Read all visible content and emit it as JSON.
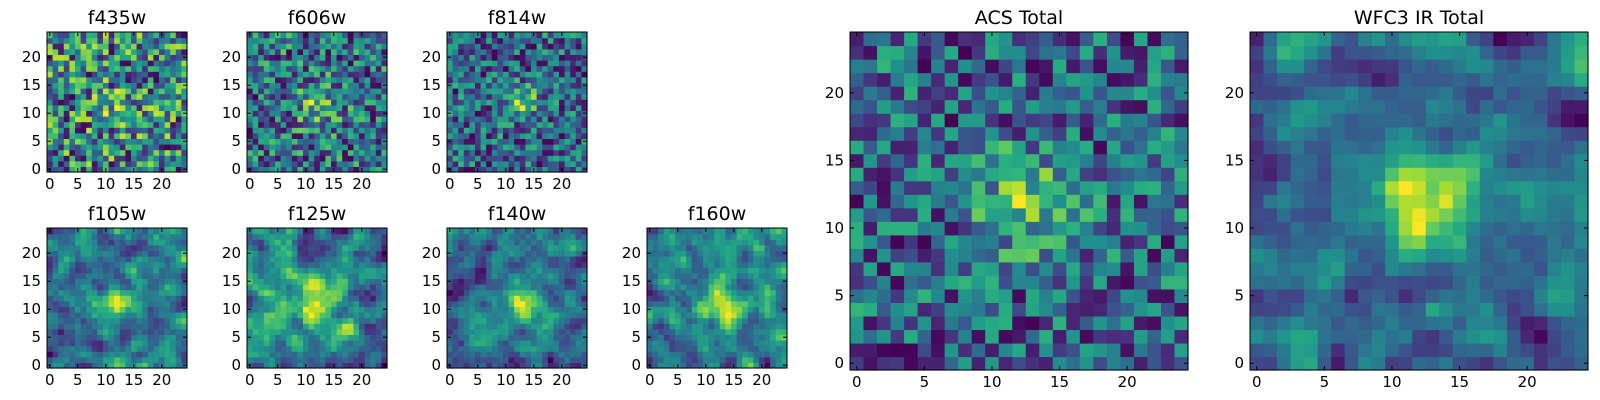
{
  "chart_data": [
    {
      "type": "heatmap",
      "title": "f435w",
      "grid_size": 25,
      "colormap": "viridis",
      "seed": 11,
      "peak_center": [
        12.5,
        11
      ],
      "peak_width": 3,
      "peak_strength": 0.15,
      "noise_level": 0.55,
      "smooth_passes": 0,
      "xlim": [
        0,
        24
      ],
      "ylim": [
        0,
        24
      ],
      "xticks": [
        0,
        5,
        10,
        15,
        20
      ],
      "yticks": [
        0,
        5,
        10,
        15,
        20
      ],
      "xtick_labels": [
        "0",
        "5",
        "10",
        "15",
        "20"
      ],
      "ytick_labels": [
        "0",
        "5",
        "10",
        "15",
        "20"
      ]
    },
    {
      "type": "heatmap",
      "title": "f606w",
      "grid_size": 25,
      "colormap": "viridis",
      "seed": 23,
      "peak_center": [
        12,
        11.5
      ],
      "peak_width": 2.5,
      "peak_strength": 0.35,
      "noise_level": 0.5,
      "smooth_passes": 0,
      "xlim": [
        0,
        24
      ],
      "ylim": [
        0,
        24
      ],
      "xticks": [
        0,
        5,
        10,
        15,
        20
      ],
      "yticks": [
        0,
        5,
        10,
        15,
        20
      ],
      "xtick_labels": [
        "0",
        "5",
        "10",
        "15",
        "20"
      ],
      "ytick_labels": [
        "0",
        "5",
        "10",
        "15",
        "20"
      ]
    },
    {
      "type": "heatmap",
      "title": "f814w",
      "grid_size": 25,
      "colormap": "viridis",
      "seed": 37,
      "peak_center": [
        13,
        12
      ],
      "peak_width": 2,
      "peak_strength": 0.5,
      "noise_level": 0.5,
      "smooth_passes": 0,
      "xlim": [
        0,
        24
      ],
      "ylim": [
        0,
        24
      ],
      "xticks": [
        0,
        5,
        10,
        15,
        20
      ],
      "yticks": [
        0,
        5,
        10,
        15,
        20
      ],
      "xtick_labels": [
        "0",
        "5",
        "10",
        "15",
        "20"
      ],
      "ytick_labels": [
        "0",
        "5",
        "10",
        "15",
        "20"
      ]
    },
    {
      "type": "heatmap",
      "title": "f105w",
      "grid_size": 25,
      "colormap": "viridis",
      "seed": 41,
      "peak_center": [
        12.5,
        11
      ],
      "peak_width": 2.5,
      "peak_strength": 0.5,
      "noise_level": 0.55,
      "smooth_passes": 1,
      "xlim": [
        0,
        24
      ],
      "ylim": [
        0,
        24
      ],
      "xticks": [
        0,
        5,
        10,
        15,
        20
      ],
      "yticks": [
        0,
        5,
        10,
        15,
        20
      ],
      "xtick_labels": [
        "0",
        "5",
        "10",
        "15",
        "20"
      ],
      "ytick_labels": [
        "0",
        "5",
        "10",
        "15",
        "20"
      ]
    },
    {
      "type": "heatmap",
      "title": "f125w",
      "grid_size": 25,
      "colormap": "viridis",
      "seed": 53,
      "peak_center": [
        12,
        11
      ],
      "peak_width": 3,
      "peak_strength": 0.45,
      "noise_level": 0.55,
      "smooth_passes": 1,
      "xlim": [
        0,
        24
      ],
      "ylim": [
        0,
        24
      ],
      "xticks": [
        0,
        5,
        10,
        15,
        20
      ],
      "yticks": [
        0,
        5,
        10,
        15,
        20
      ],
      "xtick_labels": [
        "0",
        "5",
        "10",
        "15",
        "20"
      ],
      "ytick_labels": [
        "0",
        "5",
        "10",
        "15",
        "20"
      ]
    },
    {
      "type": "heatmap",
      "title": "f140w",
      "grid_size": 25,
      "colormap": "viridis",
      "seed": 67,
      "peak_center": [
        13,
        11
      ],
      "peak_width": 3,
      "peak_strength": 0.5,
      "noise_level": 0.55,
      "smooth_passes": 1,
      "xlim": [
        0,
        24
      ],
      "ylim": [
        0,
        24
      ],
      "xticks": [
        0,
        5,
        10,
        15,
        20
      ],
      "yticks": [
        0,
        5,
        10,
        15,
        20
      ],
      "xtick_labels": [
        "0",
        "5",
        "10",
        "15",
        "20"
      ],
      "ytick_labels": [
        "0",
        "5",
        "10",
        "15",
        "20"
      ]
    },
    {
      "type": "heatmap",
      "title": "f160w",
      "grid_size": 25,
      "colormap": "viridis",
      "seed": 79,
      "peak_center": [
        13,
        11
      ],
      "peak_width": 3,
      "peak_strength": 0.5,
      "noise_level": 0.55,
      "smooth_passes": 1,
      "xlim": [
        0,
        24
      ],
      "ylim": [
        0,
        24
      ],
      "xticks": [
        0,
        5,
        10,
        15,
        20
      ],
      "yticks": [
        0,
        5,
        10,
        15,
        20
      ],
      "xtick_labels": [
        "0",
        "5",
        "10",
        "15",
        "20"
      ],
      "ytick_labels": [
        "0",
        "5",
        "10",
        "15",
        "20"
      ]
    },
    {
      "type": "heatmap",
      "title": "ACS Total",
      "grid_size": 25,
      "colormap": "viridis",
      "seed": 97,
      "peak_center": [
        12.5,
        12
      ],
      "peak_width": 2.5,
      "peak_strength": 0.5,
      "noise_level": 0.5,
      "smooth_passes": 0,
      "xlim": [
        0,
        24
      ],
      "ylim": [
        0,
        24
      ],
      "xticks": [
        0,
        5,
        10,
        15,
        20
      ],
      "yticks": [
        0,
        5,
        10,
        15,
        20
      ],
      "xtick_labels": [
        "0",
        "5",
        "10",
        "15",
        "20"
      ],
      "ytick_labels": [
        "0",
        "5",
        "10",
        "15",
        "20"
      ]
    },
    {
      "type": "heatmap",
      "title": "WFC3 IR Total",
      "grid_size": 25,
      "colormap": "viridis",
      "seed": 113,
      "peak_center": [
        12.5,
        12
      ],
      "peak_width": 2.5,
      "peak_strength": 0.6,
      "noise_level": 0.45,
      "smooth_passes": 1,
      "xlim": [
        0,
        24
      ],
      "ylim": [
        0,
        24
      ],
      "xticks": [
        0,
        5,
        10,
        15,
        20
      ],
      "yticks": [
        0,
        5,
        10,
        15,
        20
      ],
      "xtick_labels": [
        "0",
        "5",
        "10",
        "15",
        "20"
      ],
      "ytick_labels": [
        "0",
        "5",
        "10",
        "15",
        "20"
      ]
    }
  ]
}
